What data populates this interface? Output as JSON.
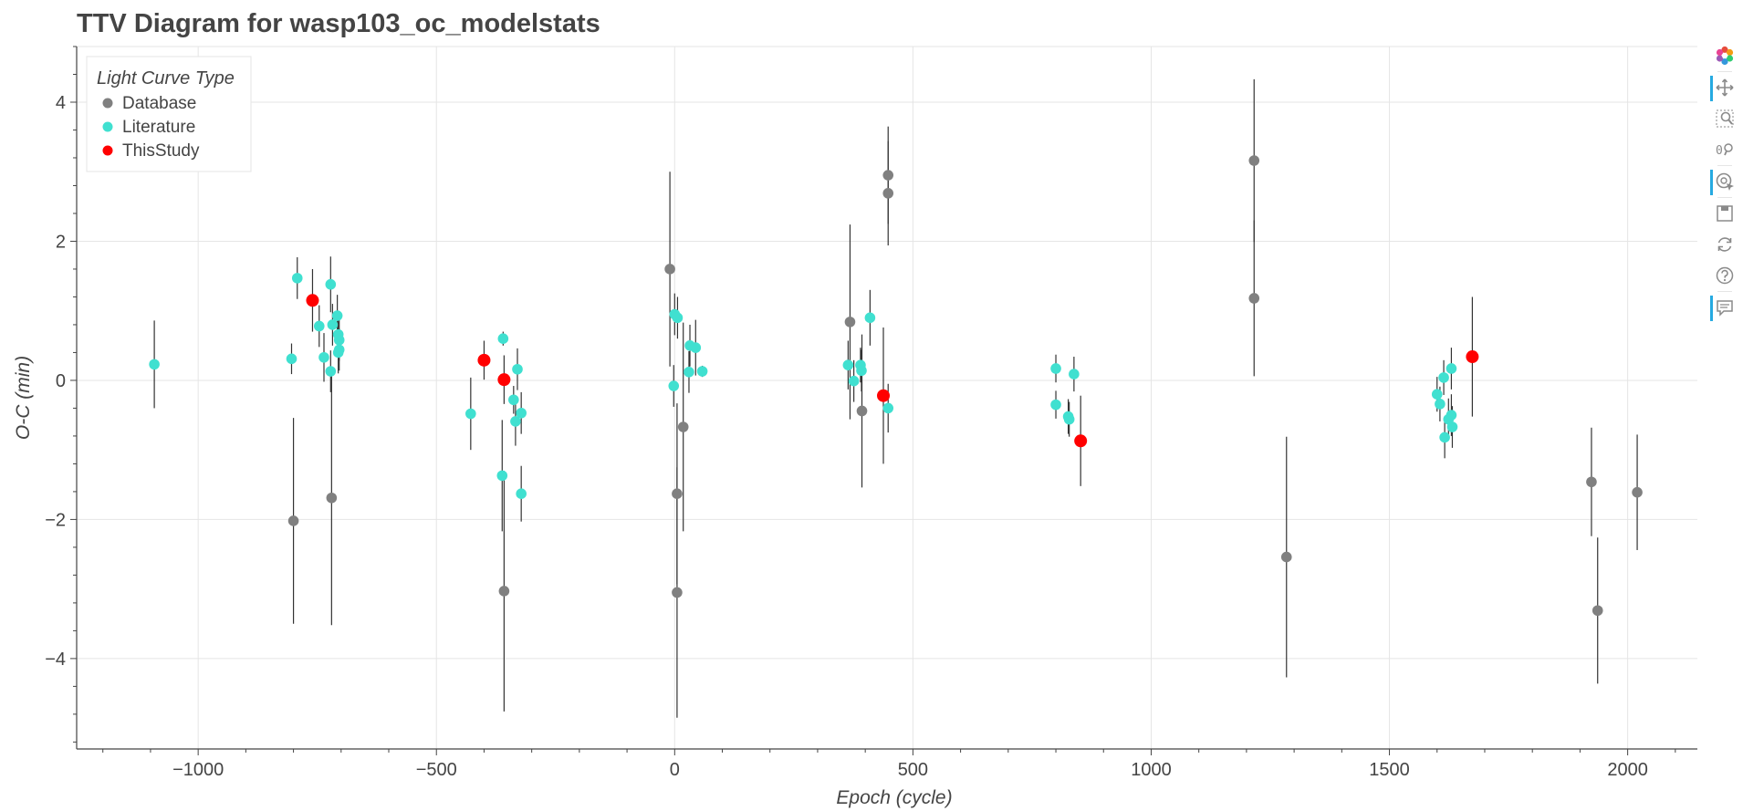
{
  "title": "TTV Diagram for wasp103_oc_modelstats",
  "toolbar": {
    "tools": [
      {
        "name": "bokeh-logo-icon",
        "active": false
      },
      {
        "name": "pan-icon",
        "active": true
      },
      {
        "name": "box-zoom-icon",
        "active": false
      },
      {
        "name": "wheel-zoom-icon",
        "active": false
      },
      {
        "name": "hover-icon",
        "active": true
      },
      {
        "name": "save-icon",
        "active": false
      },
      {
        "name": "reset-icon",
        "active": false
      },
      {
        "name": "help-icon",
        "active": false
      },
      {
        "name": "comment-icon",
        "active": true
      }
    ]
  },
  "chart_data": {
    "type": "scatter",
    "title": "TTV Diagram for wasp103_oc_modelstats",
    "xlabel": "Epoch (cycle)",
    "ylabel": "O-C (min)",
    "xlim": [
      -1255,
      2175
    ],
    "ylim": [
      -5.3,
      4.8
    ],
    "xticks": [
      -1000,
      -500,
      0,
      500,
      1000,
      1500,
      2000
    ],
    "xtick_labels": [
      "−1000",
      "−500",
      "0",
      "500",
      "1000",
      "1500",
      "2000"
    ],
    "yticks": [
      -4,
      -2,
      0,
      2,
      4
    ],
    "ytick_labels": [
      "−4",
      "−2",
      "0",
      "2",
      "4"
    ],
    "grid": true,
    "legend": {
      "title": "Light Curve Type",
      "position": "top-left",
      "entries": [
        {
          "label": "Database",
          "color": "#808080"
        },
        {
          "label": "Literature",
          "color": "#40e0d0"
        },
        {
          "label": "ThisStudy",
          "color": "#ff0000"
        }
      ]
    },
    "series": [
      {
        "name": "Database",
        "color": "#808080",
        "points": [
          {
            "x": -800,
            "y": -2.02,
            "err": 1.48
          },
          {
            "x": -720,
            "y": -1.69,
            "err": 1.83
          },
          {
            "x": -358,
            "y": -3.03,
            "err": 1.73
          },
          {
            "x": -10,
            "y": 1.6,
            "err": 1.4
          },
          {
            "x": 5,
            "y": -3.05,
            "err": 1.8
          },
          {
            "x": 5,
            "y": -1.63,
            "err": 1.3
          },
          {
            "x": 18,
            "y": -0.67,
            "err": 1.5
          },
          {
            "x": 368,
            "y": 0.84,
            "err": 1.4
          },
          {
            "x": 393,
            "y": -0.44,
            "err": 1.1
          },
          {
            "x": 448,
            "y": 2.95,
            "err": 0.7
          },
          {
            "x": 448,
            "y": 2.69,
            "err": 0.75
          },
          {
            "x": 1216,
            "y": 3.16,
            "err": 1.17
          },
          {
            "x": 1216,
            "y": 1.18,
            "err": 1.12
          },
          {
            "x": 1284,
            "y": -2.54,
            "err": 1.73
          },
          {
            "x": 1924,
            "y": -1.46,
            "err": 0.78
          },
          {
            "x": 1937,
            "y": -3.31,
            "err": 1.05
          },
          {
            "x": 2020,
            "y": -1.61,
            "err": 0.83
          }
        ]
      },
      {
        "name": "Literature",
        "color": "#40e0d0",
        "points": [
          {
            "x": -1092,
            "y": 0.23,
            "err": 0.63
          },
          {
            "x": -804,
            "y": 0.31,
            "err": 0.22
          },
          {
            "x": -792,
            "y": 1.47,
            "err": 0.3
          },
          {
            "x": -746,
            "y": 0.78,
            "err": 0.3
          },
          {
            "x": -736,
            "y": 0.33,
            "err": 0.35
          },
          {
            "x": -722,
            "y": 1.38,
            "err": 0.4
          },
          {
            "x": -722,
            "y": 0.13,
            "err": 0.3
          },
          {
            "x": -718,
            "y": 0.8,
            "err": 0.3
          },
          {
            "x": -708,
            "y": 0.93,
            "err": 0.3
          },
          {
            "x": -706,
            "y": 0.66,
            "err": 0.3
          },
          {
            "x": -704,
            "y": 0.58,
            "err": 0.3
          },
          {
            "x": -704,
            "y": 0.44,
            "err": 0.3
          },
          {
            "x": -706,
            "y": 0.4,
            "err": 0.3
          },
          {
            "x": -428,
            "y": -0.48,
            "err": 0.52
          },
          {
            "x": -360,
            "y": 0.6,
            "err": 0.1
          },
          {
            "x": -362,
            "y": -1.37,
            "err": 0.8
          },
          {
            "x": -338,
            "y": -0.28,
            "err": 0.2
          },
          {
            "x": -334,
            "y": -0.59,
            "err": 0.35
          },
          {
            "x": -330,
            "y": 0.16,
            "err": 0.3
          },
          {
            "x": -322,
            "y": -0.47,
            "err": 0.3
          },
          {
            "x": -322,
            "y": -1.63,
            "err": 0.4
          },
          {
            "x": -2,
            "y": -0.08,
            "err": 0.3
          },
          {
            "x": 0,
            "y": 0.95,
            "err": 0.3
          },
          {
            "x": 6,
            "y": 0.9,
            "err": 0.3
          },
          {
            "x": 30,
            "y": 0.12,
            "err": 0.3
          },
          {
            "x": 32,
            "y": 0.5,
            "err": 0.3
          },
          {
            "x": 44,
            "y": 0.47,
            "err": 0.4
          },
          {
            "x": 58,
            "y": 0.13,
            "err": 0.08
          },
          {
            "x": 364,
            "y": 0.22,
            "err": 0.35
          },
          {
            "x": 376,
            "y": -0.01,
            "err": 0.3
          },
          {
            "x": 390,
            "y": 0.22,
            "err": 0.25
          },
          {
            "x": 392,
            "y": 0.14,
            "err": 0.3
          },
          {
            "x": 410,
            "y": 0.9,
            "err": 0.4
          },
          {
            "x": 448,
            "y": -0.4,
            "err": 0.35
          },
          {
            "x": 800,
            "y": 0.17,
            "err": 0.2
          },
          {
            "x": 800,
            "y": -0.35,
            "err": 0.2
          },
          {
            "x": 826,
            "y": -0.52,
            "err": 0.25
          },
          {
            "x": 828,
            "y": -0.56,
            "err": 0.25
          },
          {
            "x": 838,
            "y": 0.09,
            "err": 0.25
          },
          {
            "x": 1600,
            "y": -0.2,
            "err": 0.25
          },
          {
            "x": 1606,
            "y": -0.34,
            "err": 0.25
          },
          {
            "x": 1614,
            "y": 0.04,
            "err": 0.25
          },
          {
            "x": 1616,
            "y": -0.82,
            "err": 0.3
          },
          {
            "x": 1624,
            "y": -0.56,
            "err": 0.3
          },
          {
            "x": 1630,
            "y": 0.17,
            "err": 0.3
          },
          {
            "x": 1630,
            "y": -0.5,
            "err": 0.3
          },
          {
            "x": 1632,
            "y": -0.67,
            "err": 0.3
          }
        ]
      },
      {
        "name": "ThisStudy",
        "color": "#ff0000",
        "points": [
          {
            "x": -760,
            "y": 1.15,
            "err": 0.45
          },
          {
            "x": -400,
            "y": 0.29,
            "err": 0.28
          },
          {
            "x": -358,
            "y": 0.01,
            "err": 0.35
          },
          {
            "x": 438,
            "y": -0.22,
            "err": 0.98
          },
          {
            "x": 852,
            "y": -0.87,
            "err": 0.65
          },
          {
            "x": 1674,
            "y": 0.34,
            "err": 0.86
          }
        ]
      }
    ]
  }
}
